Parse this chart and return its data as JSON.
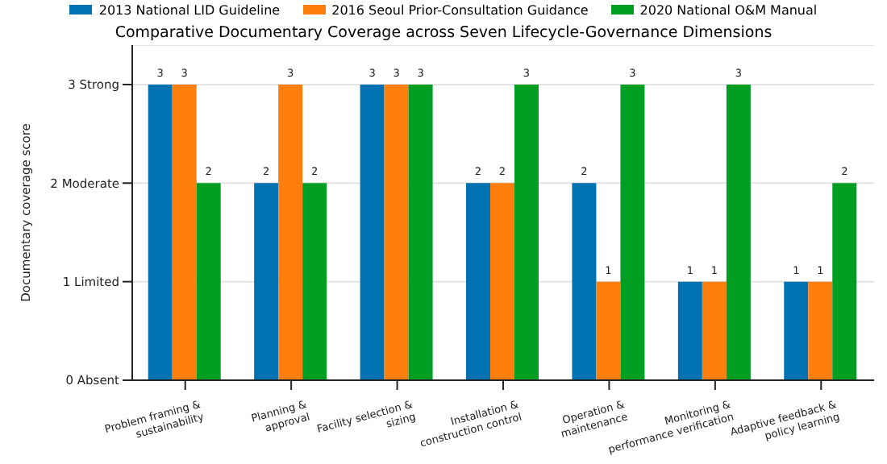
{
  "chart_data": {
    "type": "bar",
    "title": "Comparative Documentary Coverage across Seven Lifecycle-Governance Dimensions",
    "ylabel": "Documentary coverage score",
    "categories": [
      "Problem framing &\nsustainability",
      "Planning &\napproval",
      "Facility selection &\nsizing",
      "Installation &\nconstruction control",
      "Operation &\nmaintenance",
      "Monitoring &\nperformance verification",
      "Adaptive feedback &\npolicy learning"
    ],
    "series": [
      {
        "name": "2013 National LID Guideline",
        "color": "#0072b2",
        "values": [
          3,
          2,
          3,
          2,
          2,
          1,
          1
        ]
      },
      {
        "name": "2016 Seoul Prior-Consultation Guidance",
        "color": "#ff7f0e",
        "values": [
          3,
          3,
          3,
          2,
          1,
          1,
          1
        ]
      },
      {
        "name": "2020 National O&M Manual",
        "color": "#009e23",
        "values": [
          2,
          2,
          3,
          3,
          3,
          3,
          2
        ]
      }
    ],
    "ylim": [
      0,
      3.4
    ],
    "yticks": [
      {
        "value": 0,
        "label": "0 Absent"
      },
      {
        "value": 1,
        "label": "1 Limited"
      },
      {
        "value": 2,
        "label": "2 Moderate"
      },
      {
        "value": 3,
        "label": "3 Strong"
      }
    ],
    "grid": "y",
    "legend": "top",
    "data_labels": true
  }
}
